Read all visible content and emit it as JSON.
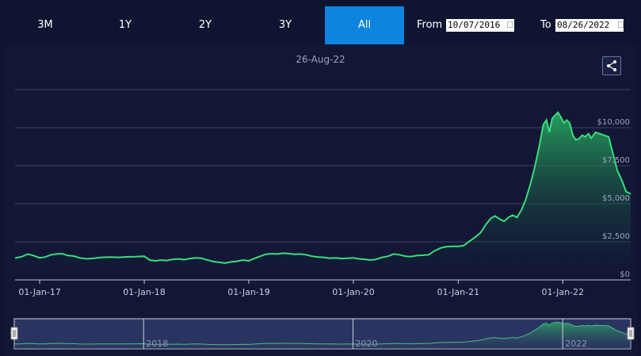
{
  "range_buttons": [
    {
      "label": "3M",
      "active": false
    },
    {
      "label": "1Y",
      "active": false
    },
    {
      "label": "2Y",
      "active": false
    },
    {
      "label": "3Y",
      "active": false
    },
    {
      "label": "All",
      "active": true
    }
  ],
  "date_range": {
    "from_label": "From",
    "from_value": "10/07/2016",
    "to_label": "To",
    "to_value": "08/26/2022"
  },
  "current_date": "26-Aug-22",
  "share_icon": "share-icon",
  "colors": {
    "background": "#0f1530",
    "accent": "#0d84e0",
    "line": "#3bdc7c",
    "area_top": "#26a55c",
    "navigator": "#2a3460"
  },
  "chart_data": {
    "type": "area",
    "x_tick_labels": [
      "01-Jan-17",
      "01-Jan-18",
      "01-Jan-19",
      "01-Jan-20",
      "01-Jan-21",
      "01-Jan-22"
    ],
    "y_tick_labels": [
      "$0",
      "$2,500",
      "$5,000",
      "$7,500",
      "$10,000"
    ],
    "ylim": [
      0,
      12500
    ],
    "xlim": [
      "2016-10-07",
      "2022-08-26"
    ],
    "grid": true,
    "series": [
      {
        "points": [
          [
            "2016-10-07",
            1430
          ],
          [
            "2016-11-01",
            1530
          ],
          [
            "2016-11-20",
            1700
          ],
          [
            "2016-12-10",
            1600
          ],
          [
            "2017-01-01",
            1450
          ],
          [
            "2017-01-20",
            1500
          ],
          [
            "2017-02-10",
            1650
          ],
          [
            "2017-03-01",
            1700
          ],
          [
            "2017-03-20",
            1720
          ],
          [
            "2017-04-10",
            1600
          ],
          [
            "2017-05-01",
            1560
          ],
          [
            "2017-05-20",
            1450
          ],
          [
            "2017-06-15",
            1380
          ],
          [
            "2017-07-10",
            1420
          ],
          [
            "2017-08-05",
            1480
          ],
          [
            "2017-09-01",
            1500
          ],
          [
            "2017-10-01",
            1480
          ],
          [
            "2017-11-01",
            1510
          ],
          [
            "2017-12-01",
            1520
          ],
          [
            "2018-01-01",
            1550
          ],
          [
            "2018-01-20",
            1300
          ],
          [
            "2018-02-10",
            1250
          ],
          [
            "2018-03-01",
            1300
          ],
          [
            "2018-03-20",
            1270
          ],
          [
            "2018-04-10",
            1350
          ],
          [
            "2018-05-01",
            1380
          ],
          [
            "2018-05-20",
            1330
          ],
          [
            "2018-06-10",
            1400
          ],
          [
            "2018-07-01",
            1450
          ],
          [
            "2018-07-20",
            1420
          ],
          [
            "2018-08-10",
            1300
          ],
          [
            "2018-09-01",
            1200
          ],
          [
            "2018-09-20",
            1150
          ],
          [
            "2018-10-10",
            1100
          ],
          [
            "2018-11-01",
            1180
          ],
          [
            "2018-11-20",
            1220
          ],
          [
            "2018-12-10",
            1300
          ],
          [
            "2019-01-01",
            1250
          ],
          [
            "2019-01-20",
            1400
          ],
          [
            "2019-02-10",
            1550
          ],
          [
            "2019-03-01",
            1680
          ],
          [
            "2019-03-20",
            1720
          ],
          [
            "2019-04-10",
            1700
          ],
          [
            "2019-05-01",
            1750
          ],
          [
            "2019-05-20",
            1730
          ],
          [
            "2019-06-10",
            1680
          ],
          [
            "2019-07-01",
            1700
          ],
          [
            "2019-07-20",
            1650
          ],
          [
            "2019-08-10",
            1550
          ],
          [
            "2019-09-01",
            1500
          ],
          [
            "2019-09-20",
            1480
          ],
          [
            "2019-10-10",
            1420
          ],
          [
            "2019-11-01",
            1450
          ],
          [
            "2019-11-20",
            1400
          ],
          [
            "2019-12-10",
            1420
          ],
          [
            "2020-01-01",
            1450
          ],
          [
            "2020-01-20",
            1380
          ],
          [
            "2020-02-10",
            1350
          ],
          [
            "2020-03-01",
            1300
          ],
          [
            "2020-03-20",
            1350
          ],
          [
            "2020-04-10",
            1480
          ],
          [
            "2020-05-01",
            1550
          ],
          [
            "2020-05-20",
            1700
          ],
          [
            "2020-06-10",
            1650
          ],
          [
            "2020-07-01",
            1550
          ],
          [
            "2020-07-20",
            1530
          ],
          [
            "2020-08-10",
            1600
          ],
          [
            "2020-09-01",
            1620
          ],
          [
            "2020-09-20",
            1650
          ],
          [
            "2020-10-10",
            1900
          ],
          [
            "2020-11-01",
            2100
          ],
          [
            "2020-11-20",
            2180
          ],
          [
            "2020-12-10",
            2200
          ],
          [
            "2021-01-01",
            2200
          ],
          [
            "2021-01-20",
            2250
          ],
          [
            "2021-02-10",
            2550
          ],
          [
            "2021-03-01",
            2800
          ],
          [
            "2021-03-20",
            3100
          ],
          [
            "2021-04-10",
            3700
          ],
          [
            "2021-04-25",
            4050
          ],
          [
            "2021-05-10",
            4200
          ],
          [
            "2021-05-25",
            4000
          ],
          [
            "2021-06-10",
            3850
          ],
          [
            "2021-06-25",
            4100
          ],
          [
            "2021-07-10",
            4250
          ],
          [
            "2021-07-25",
            4100
          ],
          [
            "2021-08-10",
            4600
          ],
          [
            "2021-08-25",
            5300
          ],
          [
            "2021-09-10",
            6300
          ],
          [
            "2021-09-25",
            7400
          ],
          [
            "2021-10-10",
            8700
          ],
          [
            "2021-10-25",
            10200
          ],
          [
            "2021-11-05",
            10500
          ],
          [
            "2021-11-15",
            9700
          ],
          [
            "2021-11-25",
            10600
          ],
          [
            "2021-12-05",
            10800
          ],
          [
            "2021-12-15",
            11000
          ],
          [
            "2021-12-25",
            10700
          ],
          [
            "2022-01-05",
            10300
          ],
          [
            "2022-01-15",
            10500
          ],
          [
            "2022-01-25",
            10300
          ],
          [
            "2022-02-05",
            9500
          ],
          [
            "2022-02-15",
            9200
          ],
          [
            "2022-02-25",
            9250
          ],
          [
            "2022-03-10",
            9500
          ],
          [
            "2022-03-20",
            9400
          ],
          [
            "2022-04-01",
            9600
          ],
          [
            "2022-04-10",
            9300
          ],
          [
            "2022-04-25",
            9700
          ],
          [
            "2022-05-10",
            9600
          ],
          [
            "2022-05-25",
            9500
          ],
          [
            "2022-06-10",
            9400
          ],
          [
            "2022-06-25",
            8300
          ],
          [
            "2022-07-10",
            7200
          ],
          [
            "2022-07-25",
            6600
          ],
          [
            "2022-08-10",
            5800
          ],
          [
            "2022-08-26",
            5650
          ]
        ]
      }
    ]
  },
  "navigator": {
    "labels": [
      "2018",
      "2020",
      "2022"
    ],
    "label_dates": [
      "2018-01-01",
      "2020-01-01",
      "2022-01-01"
    ]
  }
}
